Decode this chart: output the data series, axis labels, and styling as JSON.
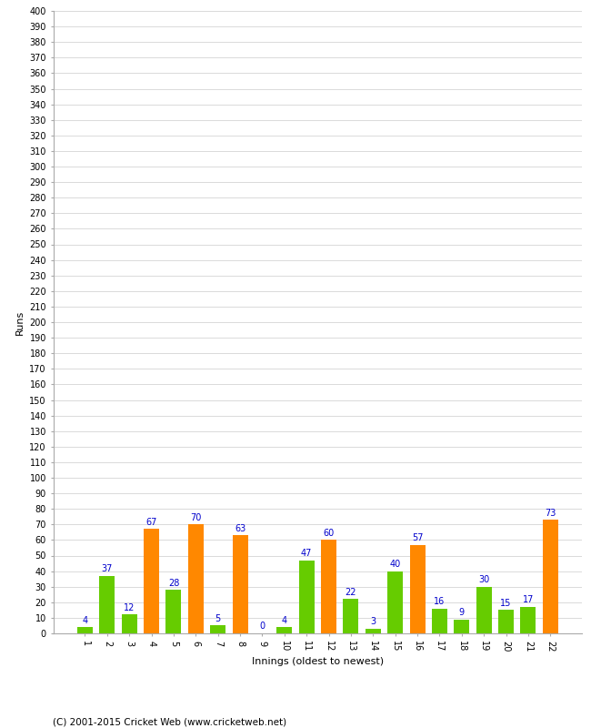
{
  "innings": [
    1,
    2,
    3,
    4,
    5,
    6,
    7,
    8,
    9,
    10,
    11,
    12,
    13,
    14,
    15,
    16,
    17,
    18,
    19,
    20,
    21,
    22
  ],
  "values": [
    4,
    37,
    12,
    67,
    28,
    70,
    5,
    63,
    0,
    4,
    47,
    60,
    22,
    3,
    40,
    57,
    16,
    9,
    30,
    15,
    17,
    73
  ],
  "colors": [
    "#66cc00",
    "#66cc00",
    "#66cc00",
    "#ff8800",
    "#66cc00",
    "#ff8800",
    "#66cc00",
    "#ff8800",
    "#66cc00",
    "#66cc00",
    "#66cc00",
    "#ff8800",
    "#66cc00",
    "#66cc00",
    "#66cc00",
    "#ff8800",
    "#66cc00",
    "#66cc00",
    "#66cc00",
    "#66cc00",
    "#66cc00",
    "#ff8800"
  ],
  "xlabel": "Innings (oldest to newest)",
  "ylabel": "Runs",
  "ylim": [
    0,
    400
  ],
  "background_color": "#ffffff",
  "grid_color": "#cccccc",
  "label_color": "#0000cc",
  "footer": "(C) 2001-2015 Cricket Web (www.cricketweb.net)"
}
